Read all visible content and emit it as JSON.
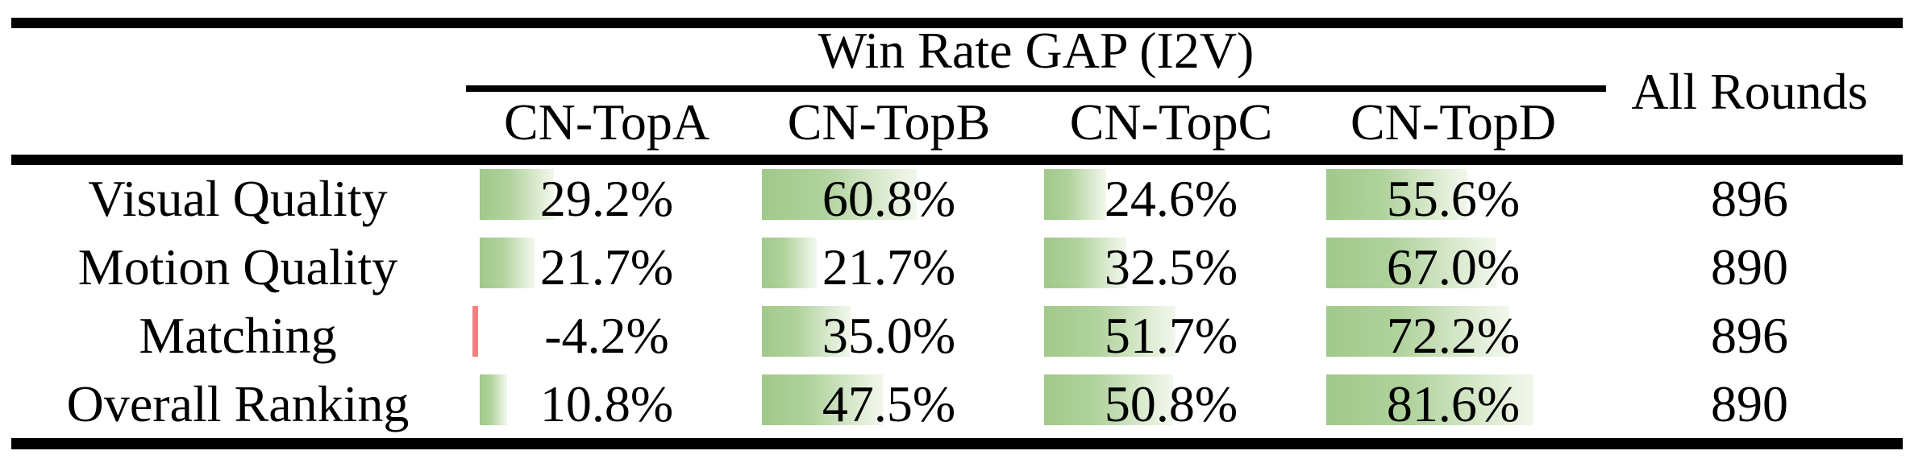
{
  "table": {
    "group_header": "Win Rate GAP (I2V)",
    "all_rounds_header": "All Rounds",
    "columns": [
      "CN-TopA",
      "CN-TopB",
      "CN-TopC",
      "CN-TopD"
    ],
    "rows": [
      {
        "label": "Visual Quality",
        "values": [
          29.2,
          60.8,
          24.6,
          55.6
        ],
        "display": [
          "29.2%",
          "60.8%",
          "24.6%",
          "55.6%"
        ],
        "all_rounds": "896"
      },
      {
        "label": "Motion Quality",
        "values": [
          21.7,
          21.7,
          32.5,
          67.0
        ],
        "display": [
          "21.7%",
          "21.7%",
          "32.5%",
          "67.0%"
        ],
        "all_rounds": "890"
      },
      {
        "label": "Matching",
        "values": [
          -4.2,
          35.0,
          51.7,
          72.2
        ],
        "display": [
          "-4.2%",
          "35.0%",
          "51.7%",
          "72.2%"
        ],
        "all_rounds": "896"
      },
      {
        "label": "Overall Ranking",
        "values": [
          10.8,
          47.5,
          50.8,
          81.6
        ],
        "display": [
          "10.8%",
          "47.5%",
          "50.8%",
          "81.6%"
        ],
        "all_rounds": "890"
      }
    ],
    "colors": {
      "bar_start": "#a1c98b",
      "bar_mid": "#b0d29c",
      "bar_light": "#e7f1de",
      "bar_end": "#f1f7ec",
      "negative_bar": "#f8817f",
      "rule": "#000000",
      "text": "#000000",
      "background": "#ffffff"
    }
  }
}
